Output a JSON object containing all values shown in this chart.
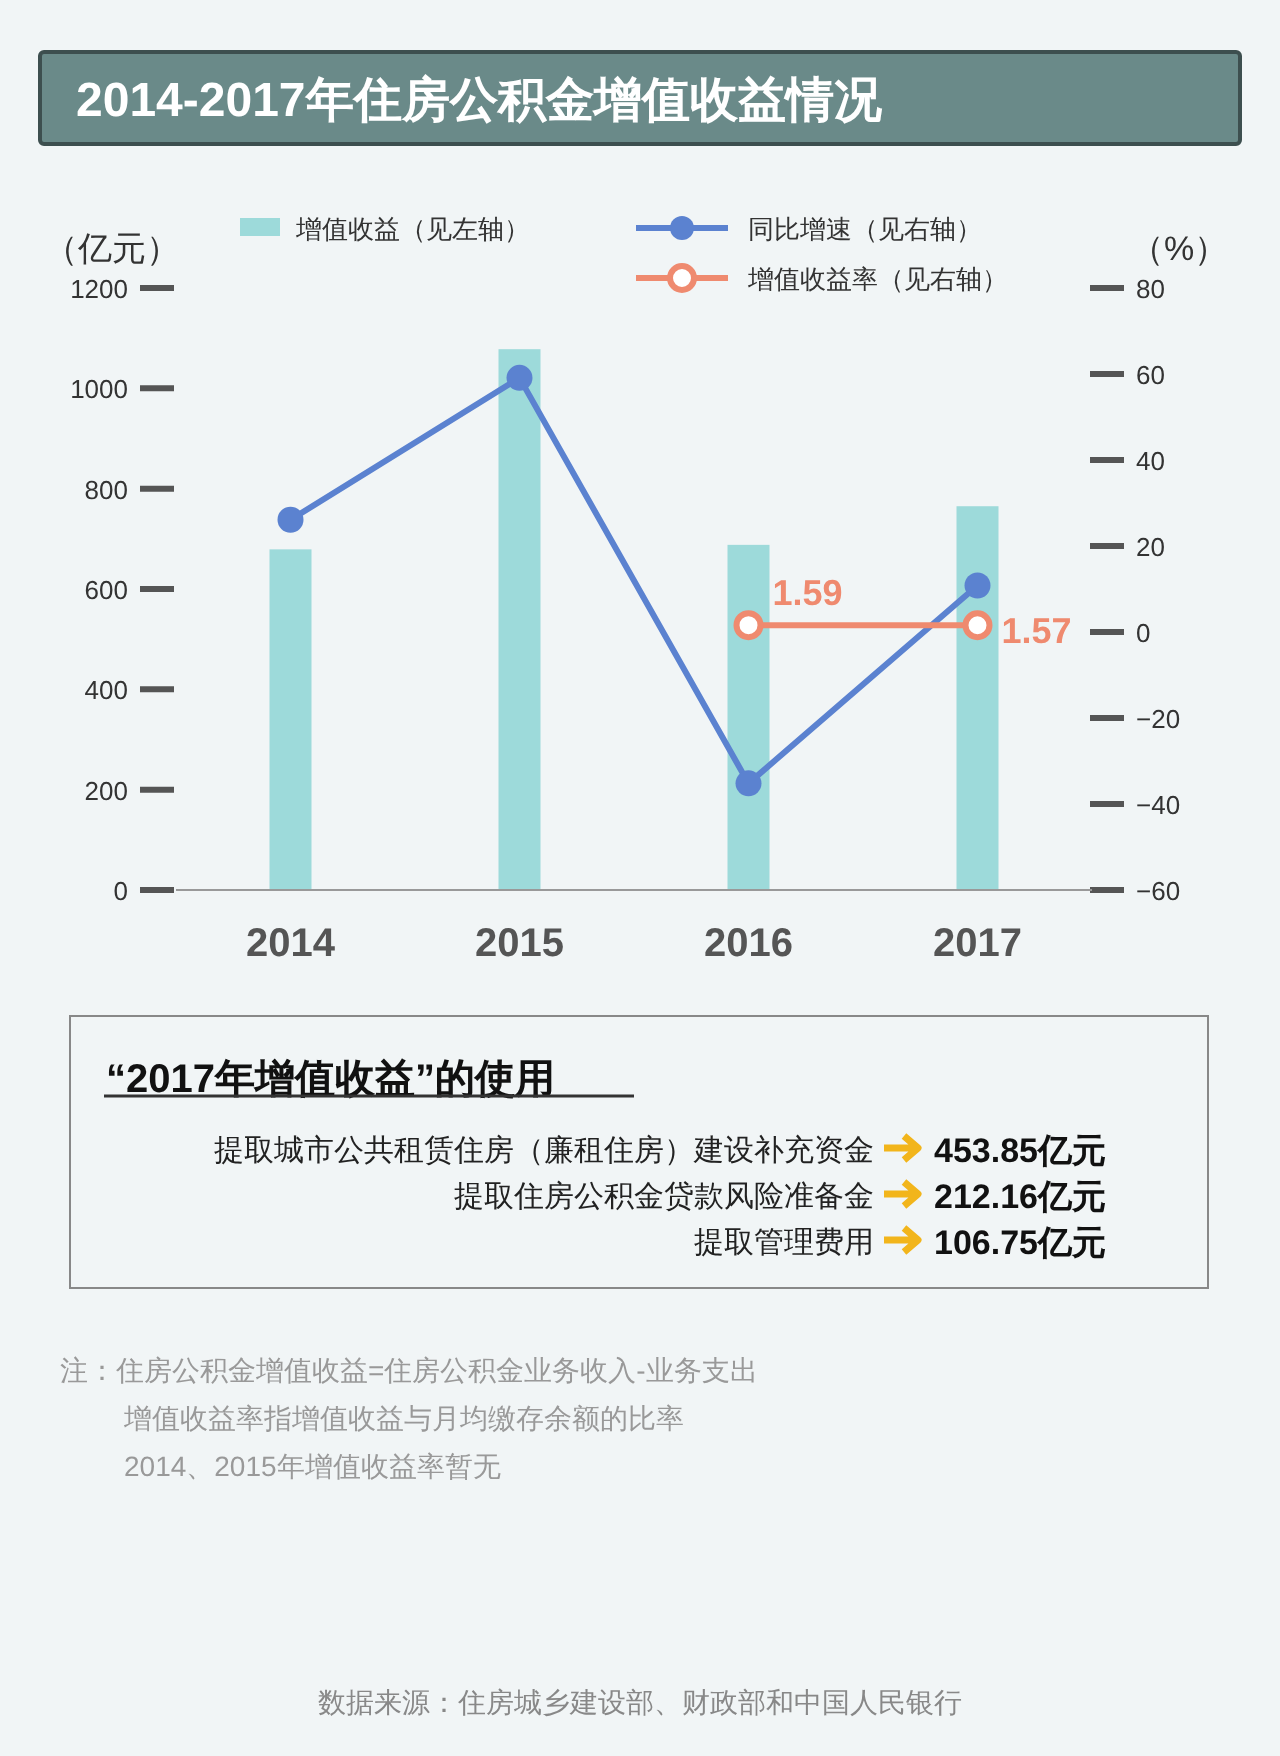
{
  "chart_data": [
    {
      "type": "bar",
      "title": "2014-2017年住房公积金增值收益情况",
      "ylabel": "（亿元）",
      "y2label": "（%）",
      "categories": [
        "2014",
        "2015",
        "2016",
        "2017"
      ],
      "series": [
        {
          "name": "增值收益（见左轴）",
          "type": "bar",
          "color": "#9ddada",
          "values": [
            679,
            1078,
            688,
            765
          ]
        },
        {
          "name": "同比增速（见右轴）",
          "type": "line",
          "axis": "y2",
          "color": "#5b82d0",
          "values": [
            26.1,
            59.1,
            -35.2,
            10.8
          ]
        },
        {
          "name": "增值收益率（见右轴）",
          "type": "line",
          "axis": "y2",
          "color": "#ef8a6f",
          "values": [
            null,
            null,
            1.59,
            1.57
          ],
          "value_labels": [
            null,
            null,
            "1.59",
            "1.57"
          ]
        }
      ],
      "ylim": [
        0,
        1200
      ],
      "yticks": [
        0,
        200,
        400,
        600,
        800,
        1000,
        1200
      ],
      "y2lim": [
        -60,
        80
      ],
      "y2ticks": [
        -60,
        -40,
        -20,
        0,
        20,
        40,
        60,
        80
      ],
      "marker": "circle",
      "legend": "top",
      "grid": false,
      "annotations": [
        "注：住房公积金增值收益=住房公积金业务收入-业务支出",
        "增值收益率指增值收益与月均缴存余额的比率",
        "2014、2015年增值收益率暂无",
        "数据来源：住房城乡建设部、财政部和中国人民银行"
      ]
    },
    {
      "type": "other",
      "title": "“2017年增值收益”的使用",
      "categories": [
        "提取城市公共租赁住房（廉租住房）建设补充资金",
        "提取住房公积金贷款风险准备金",
        "提取管理费用"
      ],
      "value_labels": [
        "453.85亿元",
        "212.16亿元",
        "106.75亿元"
      ]
    }
  ]
}
